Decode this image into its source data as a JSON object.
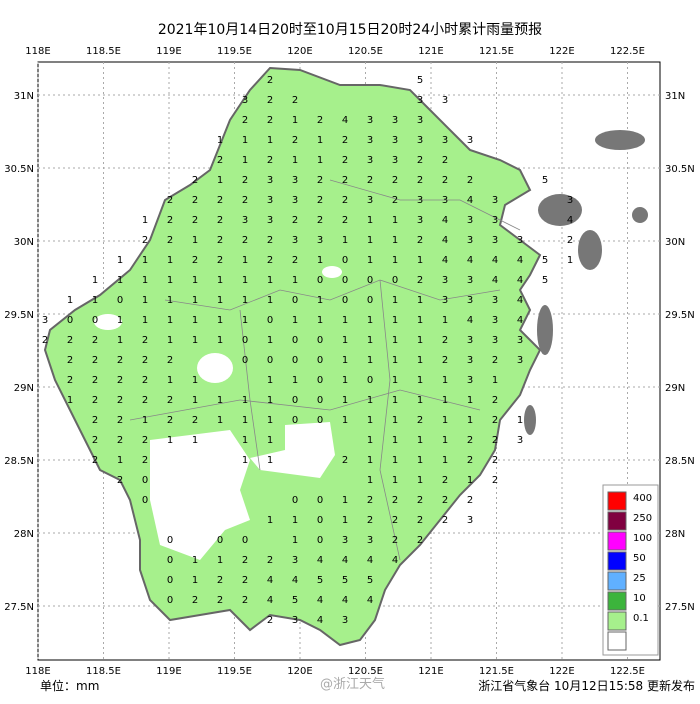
{
  "header": {
    "title": "2021年10月14日20时至10月15日20时24小时累计雨量预报"
  },
  "axes": {
    "lon": [
      "118E",
      "118.5E",
      "119E",
      "119.5E",
      "120E",
      "120.5E",
      "121E",
      "121.5E",
      "122E",
      "122.5E"
    ],
    "lat": [
      "31N",
      "30.5N",
      "30N",
      "29.5N",
      "29N",
      "28.5N",
      "28N",
      "27.5N"
    ]
  },
  "legend": {
    "colors": [
      "#ff0000",
      "#800040",
      "#ff00ff",
      "#0000ff",
      "#60b0ff",
      "#3cb43c",
      "#a6f08c",
      "#ffffff"
    ],
    "labels": [
      "400",
      "250",
      "100",
      "50",
      "25",
      "10",
      "0.1"
    ]
  },
  "stations": {
    "rows": [
      [
        null,
        null,
        null,
        null,
        null,
        null,
        null,
        null,
        null,
        2,
        null,
        null,
        null,
        null,
        null,
        5
      ],
      [
        null,
        null,
        null,
        null,
        null,
        null,
        null,
        null,
        3,
        2,
        2,
        null,
        null,
        null,
        null,
        3,
        3
      ],
      [
        null,
        null,
        null,
        null,
        null,
        null,
        null,
        null,
        2,
        2,
        1,
        2,
        4,
        3,
        3,
        3
      ],
      [
        null,
        null,
        null,
        null,
        null,
        null,
        null,
        1,
        1,
        1,
        2,
        1,
        2,
        3,
        3,
        3,
        3,
        3
      ],
      [
        null,
        null,
        null,
        null,
        null,
        null,
        null,
        2,
        1,
        2,
        1,
        1,
        2,
        3,
        3,
        2,
        2
      ],
      [
        null,
        null,
        null,
        null,
        null,
        null,
        2,
        1,
        2,
        3,
        3,
        2,
        2,
        2,
        2,
        2,
        2,
        2,
        null,
        null,
        5
      ],
      [
        null,
        null,
        null,
        null,
        null,
        2,
        2,
        2,
        2,
        3,
        3,
        2,
        2,
        3,
        2,
        3,
        3,
        4,
        3,
        null,
        null,
        3
      ],
      [
        null,
        null,
        null,
        null,
        1,
        2,
        2,
        2,
        3,
        3,
        2,
        2,
        2,
        1,
        1,
        3,
        4,
        3,
        3,
        null,
        null,
        4
      ],
      [
        null,
        null,
        null,
        null,
        2,
        2,
        1,
        2,
        2,
        2,
        3,
        3,
        1,
        1,
        1,
        2,
        4,
        3,
        3,
        3,
        null,
        2
      ],
      [
        null,
        null,
        null,
        1,
        1,
        1,
        2,
        2,
        1,
        2,
        2,
        1,
        0,
        1,
        1,
        1,
        4,
        4,
        4,
        4,
        5,
        1
      ],
      [
        null,
        null,
        1,
        1,
        1,
        1,
        1,
        1,
        1,
        1,
        1,
        0,
        0,
        0,
        0,
        2,
        3,
        3,
        4,
        4,
        5
      ],
      [
        null,
        1,
        1,
        0,
        1,
        1,
        1,
        1,
        1,
        1,
        0,
        1,
        0,
        0,
        1,
        1,
        3,
        3,
        3,
        4
      ],
      [
        3,
        0,
        0,
        1,
        1,
        1,
        1,
        1,
        1,
        0,
        1,
        1,
        1,
        1,
        1,
        1,
        1,
        4,
        3,
        4
      ],
      [
        2,
        2,
        2,
        1,
        2,
        1,
        1,
        1,
        0,
        1,
        0,
        0,
        1,
        1,
        1,
        1,
        2,
        3,
        3,
        3
      ],
      [
        null,
        2,
        2,
        2,
        2,
        2,
        null,
        null,
        0,
        0,
        0,
        0,
        1,
        1,
        1,
        1,
        2,
        3,
        2,
        3
      ],
      [
        null,
        2,
        2,
        2,
        2,
        1,
        1,
        null,
        null,
        1,
        1,
        0,
        1,
        0,
        1,
        1,
        1,
        3,
        1
      ],
      [
        null,
        1,
        2,
        2,
        2,
        2,
        1,
        1,
        1,
        1,
        0,
        0,
        1,
        1,
        1,
        1,
        1,
        1,
        2
      ],
      [
        null,
        null,
        2,
        2,
        1,
        2,
        2,
        1,
        1,
        1,
        0,
        0,
        1,
        1,
        1,
        2,
        1,
        1,
        2,
        1
      ],
      [
        null,
        null,
        2,
        2,
        2,
        1,
        1,
        null,
        1,
        1,
        null,
        null,
        null,
        1,
        1,
        1,
        1,
        2,
        2,
        3
      ],
      [
        null,
        null,
        2,
        1,
        2,
        null,
        null,
        null,
        1,
        1,
        null,
        null,
        2,
        1,
        1,
        1,
        1,
        2,
        2
      ],
      [
        null,
        null,
        null,
        2,
        0,
        null,
        null,
        null,
        null,
        null,
        null,
        null,
        null,
        1,
        1,
        1,
        2,
        1,
        2
      ],
      [
        null,
        null,
        null,
        null,
        0,
        null,
        null,
        null,
        null,
        null,
        0,
        0,
        1,
        2,
        2,
        2,
        2,
        2
      ],
      [
        null,
        null,
        null,
        null,
        null,
        null,
        null,
        null,
        null,
        1,
        1,
        0,
        1,
        2,
        2,
        2,
        2,
        3
      ],
      [
        null,
        null,
        null,
        null,
        null,
        0,
        null,
        0,
        0,
        null,
        1,
        0,
        3,
        3,
        2,
        2
      ],
      [
        null,
        null,
        null,
        null,
        null,
        0,
        1,
        1,
        2,
        2,
        3,
        4,
        4,
        4,
        4
      ],
      [
        null,
        null,
        null,
        null,
        null,
        0,
        1,
        2,
        2,
        4,
        4,
        5,
        5,
        5
      ],
      [
        null,
        null,
        null,
        null,
        null,
        0,
        2,
        2,
        2,
        4,
        5,
        4,
        4,
        4
      ],
      [
        null,
        null,
        null,
        null,
        null,
        null,
        null,
        null,
        null,
        2,
        3,
        4,
        3
      ]
    ]
  },
  "footer": {
    "unit": "单位：mm",
    "watermark": "@浙江天气",
    "issuer": "浙江省气象台 10月12日15:58 更新发布"
  }
}
